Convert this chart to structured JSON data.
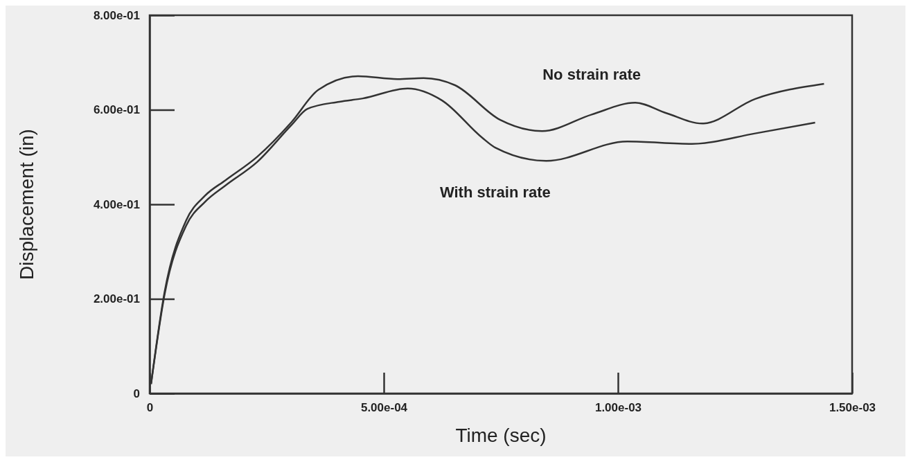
{
  "chart_data": {
    "type": "line",
    "xlabel": "Time (sec)",
    "ylabel": "Displacement (in)",
    "xlim": [
      0,
      0.0015
    ],
    "ylim": [
      0,
      0.8
    ],
    "xticks": [
      {
        "value": 0,
        "label": "0"
      },
      {
        "value": 0.0005,
        "label": "5.00e-04"
      },
      {
        "value": 0.001,
        "label": "1.00e-03"
      },
      {
        "value": 0.0015,
        "label": "1.50e-03"
      }
    ],
    "yticks": [
      {
        "value": 0,
        "label": "0"
      },
      {
        "value": 0.2,
        "label": "2.00e-01"
      },
      {
        "value": 0.4,
        "label": "4.00e-01"
      },
      {
        "value": 0.6,
        "label": "6.00e-01"
      },
      {
        "value": 0.8,
        "label": "8.00e-01"
      }
    ],
    "grid": false,
    "marker": "none",
    "line_style": "solid",
    "series": [
      {
        "name": "No strain rate",
        "color": "#333333",
        "x": [
          3e-06,
          3.2e-05,
          7.8e-05,
          0.000118,
          0.000162,
          0.00023,
          0.000303,
          0.00036,
          0.000445,
          0.000529,
          0.000585,
          0.000652,
          0.000748,
          0.000838,
          0.000944,
          0.001037,
          0.001103,
          0.00118,
          0.001293,
          0.00144
        ],
        "values": [
          0.02,
          0.215,
          0.366,
          0.418,
          0.451,
          0.501,
          0.574,
          0.642,
          0.671,
          0.665,
          0.667,
          0.652,
          0.579,
          0.555,
          0.59,
          0.615,
          0.593,
          0.571,
          0.623,
          0.655
        ]
      },
      {
        "name": "With strain rate",
        "color": "#333333",
        "x": [
          3e-06,
          3.2e-05,
          7.8e-05,
          0.000118,
          0.000162,
          0.00023,
          0.000303,
          0.000337,
          0.000405,
          0.000455,
          0.000551,
          0.000624,
          0.00071,
          0.000738,
          0.000847,
          0.00102,
          0.001158,
          0.001293,
          0.001421
        ],
        "values": [
          0.02,
          0.21,
          0.355,
          0.405,
          0.44,
          0.49,
          0.568,
          0.602,
          0.617,
          0.624,
          0.645,
          0.62,
          0.541,
          0.52,
          0.492,
          0.533,
          0.528,
          0.55,
          0.573
        ]
      }
    ]
  }
}
